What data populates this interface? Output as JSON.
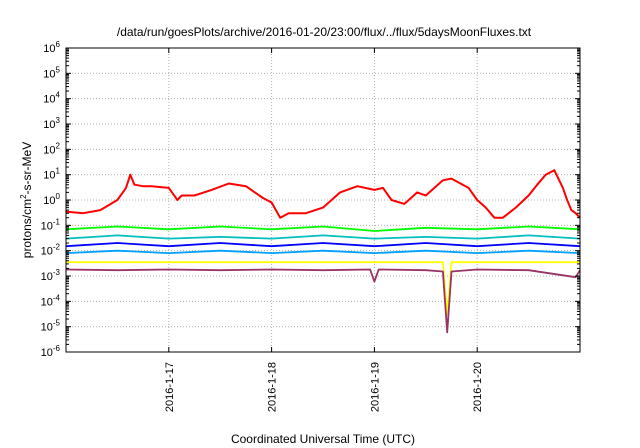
{
  "chart_data": {
    "type": "line",
    "title": "/data/run/goesPlots/archive/2016-01-20/23:00/flux/../flux/5daysMoonFluxes.txt",
    "xlabel": "Coordinated Universal Time (UTC)",
    "ylabel": "protons/cm²-s-sr-MeV",
    "ylabel_parts": {
      "pre": "protons/cm",
      "sup": "2",
      "post": "-s-sr-MeV"
    },
    "yscale": "log",
    "ylim": [
      1e-06,
      1000000.0
    ],
    "xlim": [
      "2016-01-16T00:00",
      "2016-01-21T00:00"
    ],
    "grid": true,
    "y_ticks": [
      {
        "value": 1e-06,
        "base": "10",
        "exp": "-6"
      },
      {
        "value": 1e-05,
        "base": "10",
        "exp": "-5"
      },
      {
        "value": 0.0001,
        "base": "10",
        "exp": "-4"
      },
      {
        "value": 0.001,
        "base": "10",
        "exp": "-3"
      },
      {
        "value": 0.01,
        "base": "10",
        "exp": "-2"
      },
      {
        "value": 0.1,
        "base": "10",
        "exp": "-1"
      },
      {
        "value": 1,
        "base": "10",
        "exp": "0"
      },
      {
        "value": 10,
        "base": "10",
        "exp": "1"
      },
      {
        "value": 100,
        "base": "10",
        "exp": "2"
      },
      {
        "value": 1000,
        "base": "10",
        "exp": "3"
      },
      {
        "value": 10000,
        "base": "10",
        "exp": "4"
      },
      {
        "value": 100000,
        "base": "10",
        "exp": "5"
      },
      {
        "value": 1000000,
        "base": "10",
        "exp": "6"
      }
    ],
    "x_ticks": [
      {
        "value": "2016-01-17T00:00",
        "label": "2016-1-17"
      },
      {
        "value": "2016-01-18T00:00",
        "label": "2016-1-18"
      },
      {
        "value": "2016-01-19T00:00",
        "label": "2016-1-19"
      },
      {
        "value": "2016-01-20T00:00",
        "label": "2016-1-20"
      }
    ],
    "series": [
      {
        "color": "#ff0000",
        "x": [
          "2016-01-16T00:00",
          "2016-01-16T04:00",
          "2016-01-16T08:00",
          "2016-01-16T12:00",
          "2016-01-16T14:00",
          "2016-01-16T15:00",
          "2016-01-16T16:00",
          "2016-01-16T18:00",
          "2016-01-16T20:00",
          "2016-01-17T00:00",
          "2016-01-17T02:00",
          "2016-01-17T03:00",
          "2016-01-17T06:00",
          "2016-01-17T10:00",
          "2016-01-17T14:00",
          "2016-01-17T18:00",
          "2016-01-17T22:00",
          "2016-01-18T00:00",
          "2016-01-18T02:00",
          "2016-01-18T04:00",
          "2016-01-18T08:00",
          "2016-01-18T12:00",
          "2016-01-18T16:00",
          "2016-01-18T20:00",
          "2016-01-19T00:00",
          "2016-01-19T02:00",
          "2016-01-19T04:00",
          "2016-01-19T07:00",
          "2016-01-19T10:00",
          "2016-01-19T12:00",
          "2016-01-19T16:00",
          "2016-01-19T18:00",
          "2016-01-19T22:00",
          "2016-01-20T00:00",
          "2016-01-20T02:00",
          "2016-01-20T04:00",
          "2016-01-20T06:00",
          "2016-01-20T09:00",
          "2016-01-20T12:00",
          "2016-01-20T14:00",
          "2016-01-20T16:00",
          "2016-01-20T18:00",
          "2016-01-20T20:00",
          "2016-01-20T21:00",
          "2016-01-20T22:00",
          "2016-01-20T23:00",
          "2016-01-21T00:00"
        ],
        "y": [
          0.35,
          0.3,
          0.4,
          1.0,
          3.0,
          10,
          4.0,
          3.5,
          3.5,
          3.0,
          1.0,
          1.5,
          1.5,
          2.5,
          4.5,
          3.5,
          1.2,
          0.8,
          0.2,
          0.3,
          0.3,
          0.5,
          2.0,
          3.5,
          2.5,
          3.0,
          1.0,
          0.7,
          2.0,
          1.5,
          6.0,
          7.0,
          3.0,
          1.0,
          0.5,
          0.2,
          0.2,
          0.5,
          1.5,
          4.0,
          10,
          15,
          3.0,
          1.0,
          0.4,
          0.3,
          0.2
        ]
      },
      {
        "color": "#00ff00",
        "x": [
          "2016-01-16T00:00",
          "2016-01-16T12:00",
          "2016-01-17T00:00",
          "2016-01-17T12:00",
          "2016-01-18T00:00",
          "2016-01-18T12:00",
          "2016-01-19T00:00",
          "2016-01-19T12:00",
          "2016-01-20T00:00",
          "2016-01-20T12:00",
          "2016-01-21T00:00"
        ],
        "y": [
          0.07,
          0.09,
          0.07,
          0.09,
          0.07,
          0.09,
          0.06,
          0.08,
          0.07,
          0.09,
          0.07
        ]
      },
      {
        "color": "#00bfbf",
        "x": [
          "2016-01-16T00:00",
          "2016-01-16T12:00",
          "2016-01-17T00:00",
          "2016-01-17T12:00",
          "2016-01-18T00:00",
          "2016-01-18T12:00",
          "2016-01-19T00:00",
          "2016-01-19T12:00",
          "2016-01-20T00:00",
          "2016-01-20T12:00",
          "2016-01-21T00:00"
        ],
        "y": [
          0.03,
          0.04,
          0.03,
          0.035,
          0.03,
          0.04,
          0.03,
          0.035,
          0.03,
          0.04,
          0.03
        ]
      },
      {
        "color": "#0000ff",
        "x": [
          "2016-01-16T00:00",
          "2016-01-16T12:00",
          "2016-01-17T00:00",
          "2016-01-17T12:00",
          "2016-01-18T00:00",
          "2016-01-18T12:00",
          "2016-01-19T00:00",
          "2016-01-19T12:00",
          "2016-01-20T00:00",
          "2016-01-20T12:00",
          "2016-01-21T00:00"
        ],
        "y": [
          0.015,
          0.02,
          0.015,
          0.02,
          0.015,
          0.02,
          0.015,
          0.02,
          0.015,
          0.02,
          0.015
        ]
      },
      {
        "color": "#00a0ff",
        "x": [
          "2016-01-16T00:00",
          "2016-01-16T12:00",
          "2016-01-17T00:00",
          "2016-01-17T12:00",
          "2016-01-18T00:00",
          "2016-01-18T12:00",
          "2016-01-19T00:00",
          "2016-01-19T12:00",
          "2016-01-20T00:00",
          "2016-01-20T12:00",
          "2016-01-21T00:00"
        ],
        "y": [
          0.008,
          0.01,
          0.008,
          0.01,
          0.008,
          0.01,
          0.008,
          0.01,
          0.008,
          0.01,
          0.008
        ]
      },
      {
        "color": "#ffff00",
        "x": [
          "2016-01-16T00:00",
          "2016-01-16T12:00",
          "2016-01-17T00:00",
          "2016-01-17T12:00",
          "2016-01-18T00:00",
          "2016-01-18T12:00",
          "2016-01-19T00:00",
          "2016-01-19T12:00",
          "2016-01-19T16:00",
          "2016-01-19T17:00",
          "2016-01-19T18:00",
          "2016-01-20T00:00",
          "2016-01-20T12:00",
          "2016-01-21T00:00"
        ],
        "y": [
          0.0035,
          0.0035,
          0.0035,
          0.0035,
          0.0035,
          0.0035,
          0.0035,
          0.0035,
          0.0035,
          3e-05,
          0.0035,
          0.0035,
          0.0035,
          0.0035
        ]
      },
      {
        "color": "#993366",
        "x": [
          "2016-01-16T00:00",
          "2016-01-16T12:00",
          "2016-01-17T00:00",
          "2016-01-17T12:00",
          "2016-01-18T00:00",
          "2016-01-18T12:00",
          "2016-01-18T23:00",
          "2016-01-19T00:00",
          "2016-01-19T01:00",
          "2016-01-19T12:00",
          "2016-01-19T16:00",
          "2016-01-19T17:00",
          "2016-01-19T18:00",
          "2016-01-20T00:00",
          "2016-01-20T12:00",
          "2016-01-20T23:00",
          "2016-01-21T00:00"
        ],
        "y": [
          0.0018,
          0.0017,
          0.0018,
          0.0017,
          0.0018,
          0.0017,
          0.0018,
          0.0006,
          0.0018,
          0.0017,
          0.0015,
          6e-06,
          0.0015,
          0.0018,
          0.0017,
          0.0009,
          0.0017
        ]
      }
    ]
  }
}
